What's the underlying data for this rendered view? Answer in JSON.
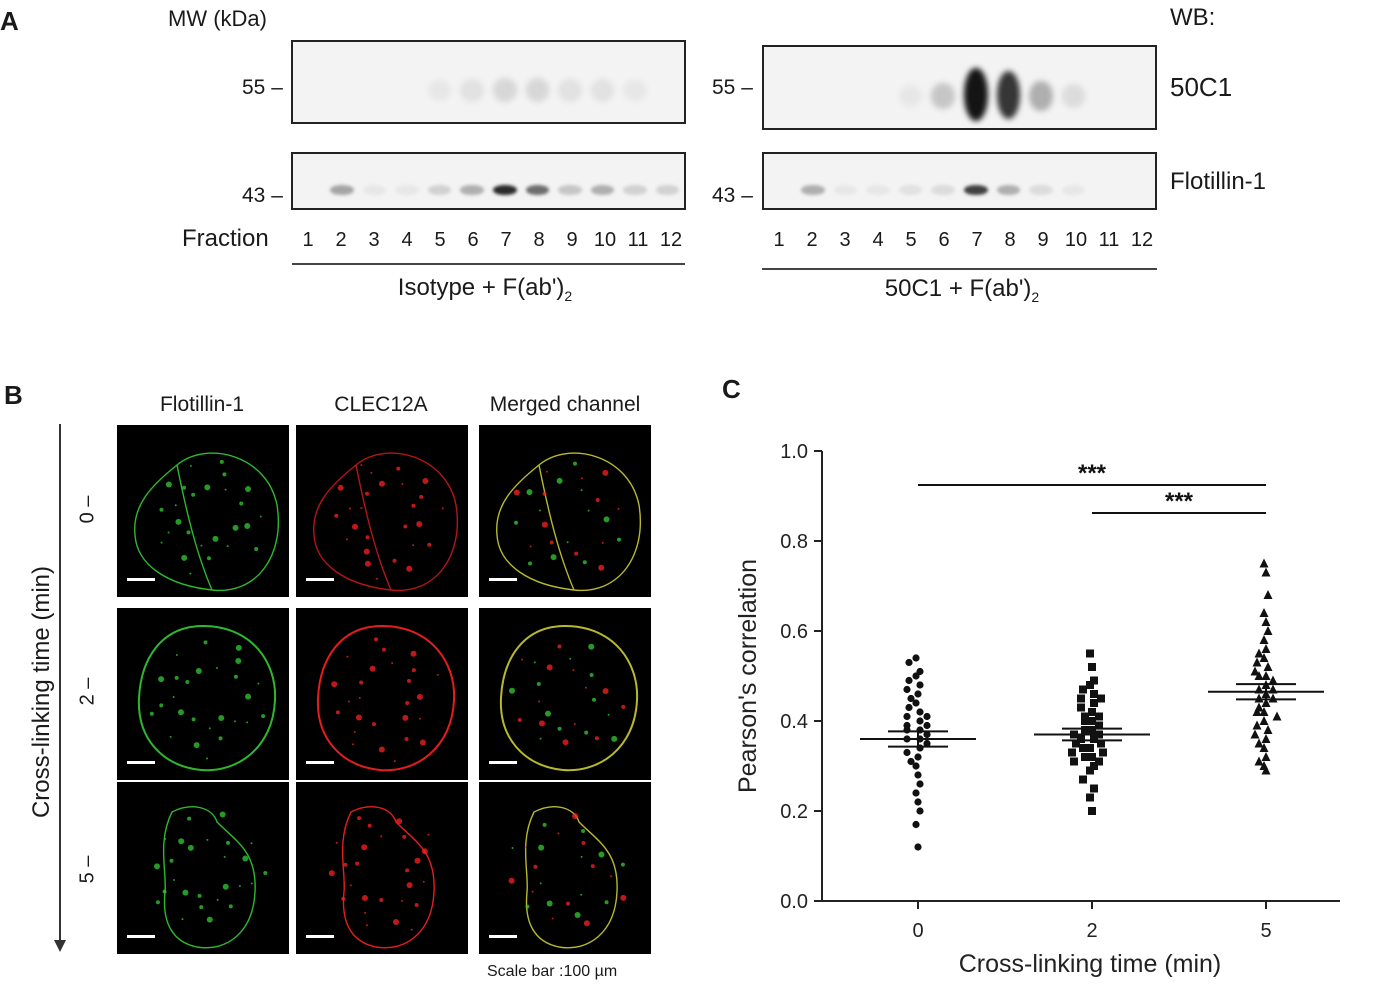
{
  "panelA": {
    "letter": "A",
    "mw_label": "MW (kDa)",
    "wb_label": "WB:",
    "fraction_label": "Fraction",
    "fractions": [
      "1",
      "2",
      "3",
      "4",
      "5",
      "6",
      "7",
      "8",
      "9",
      "10",
      "11",
      "12"
    ],
    "markers": {
      "upper": "55 –",
      "lower": "43 –"
    },
    "left_condition": {
      "main": "Isotype + F(ab')",
      "sub": "2"
    },
    "right_condition": {
      "main": "50C1 + F(ab')",
      "sub": "2"
    },
    "antibodies": {
      "top": "50C1",
      "bottom": "Flotillin-1"
    },
    "band_intensity_note": "relative band darkness per fraction (0-1)",
    "bands": {
      "left_top": [
        0,
        0,
        0,
        0,
        0.05,
        0.08,
        0.12,
        0.12,
        0.08,
        0.08,
        0.05,
        0
      ],
      "left_bottom": [
        0,
        0.35,
        0.05,
        0.05,
        0.15,
        0.3,
        0.9,
        0.6,
        0.2,
        0.3,
        0.15,
        0.15
      ],
      "right_top": [
        0,
        0,
        0,
        0,
        0.05,
        0.2,
        1.0,
        0.85,
        0.3,
        0.1,
        0,
        0
      ],
      "right_bottom": [
        0,
        0.3,
        0.05,
        0.05,
        0.08,
        0.1,
        0.8,
        0.3,
        0.1,
        0.05,
        0,
        0
      ]
    }
  },
  "panelB": {
    "letter": "B",
    "columns": [
      "Flotillin-1",
      "CLEC12A",
      "Merged channel"
    ],
    "y_label": "Cross-linking time (min)",
    "times": [
      "0 –",
      "2 –",
      "5 –"
    ],
    "scale_note": "Scale bar :100 µm",
    "channel_colors": {
      "green": "#33cc33",
      "red": "#ff2020",
      "merged": "#cccc33"
    }
  },
  "panelC": {
    "letter": "C"
  },
  "chart_data": {
    "type": "scatter",
    "xlabel": "Cross-linking time (min)",
    "ylabel": "Pearson's correlation",
    "categories": [
      "0",
      "2",
      "5"
    ],
    "ylim": [
      0.0,
      1.0
    ],
    "yticks": [
      "0.0",
      "0.2",
      "0.4",
      "0.6",
      "0.8",
      "1.0"
    ],
    "grid": false,
    "series": [
      {
        "category": "0",
        "marker": "circle",
        "mean": 0.36,
        "sem": 0.017,
        "values": [
          0.54,
          0.53,
          0.51,
          0.5,
          0.49,
          0.48,
          0.47,
          0.46,
          0.45,
          0.44,
          0.43,
          0.42,
          0.41,
          0.41,
          0.4,
          0.39,
          0.39,
          0.38,
          0.38,
          0.37,
          0.36,
          0.36,
          0.35,
          0.34,
          0.33,
          0.32,
          0.31,
          0.3,
          0.28,
          0.26,
          0.24,
          0.22,
          0.2,
          0.17,
          0.12
        ]
      },
      {
        "category": "2",
        "marker": "square",
        "mean": 0.37,
        "sem": 0.013,
        "values": [
          0.55,
          0.52,
          0.49,
          0.48,
          0.47,
          0.46,
          0.45,
          0.45,
          0.44,
          0.43,
          0.42,
          0.41,
          0.41,
          0.4,
          0.4,
          0.39,
          0.38,
          0.38,
          0.37,
          0.37,
          0.36,
          0.36,
          0.35,
          0.35,
          0.34,
          0.34,
          0.33,
          0.33,
          0.32,
          0.32,
          0.31,
          0.31,
          0.3,
          0.29,
          0.27,
          0.25,
          0.23,
          0.2
        ]
      },
      {
        "category": "5",
        "marker": "triangle",
        "mean": 0.465,
        "sem": 0.017,
        "values": [
          0.75,
          0.73,
          0.68,
          0.64,
          0.62,
          0.6,
          0.58,
          0.56,
          0.55,
          0.54,
          0.53,
          0.52,
          0.51,
          0.5,
          0.5,
          0.49,
          0.48,
          0.47,
          0.47,
          0.46,
          0.45,
          0.45,
          0.44,
          0.43,
          0.42,
          0.42,
          0.41,
          0.4,
          0.39,
          0.38,
          0.37,
          0.36,
          0.35,
          0.34,
          0.32,
          0.31,
          0.3,
          0.29
        ]
      }
    ],
    "significance": [
      {
        "from": "0",
        "to": "5",
        "label": "***"
      },
      {
        "from": "2",
        "to": "5",
        "label": "***"
      }
    ]
  }
}
